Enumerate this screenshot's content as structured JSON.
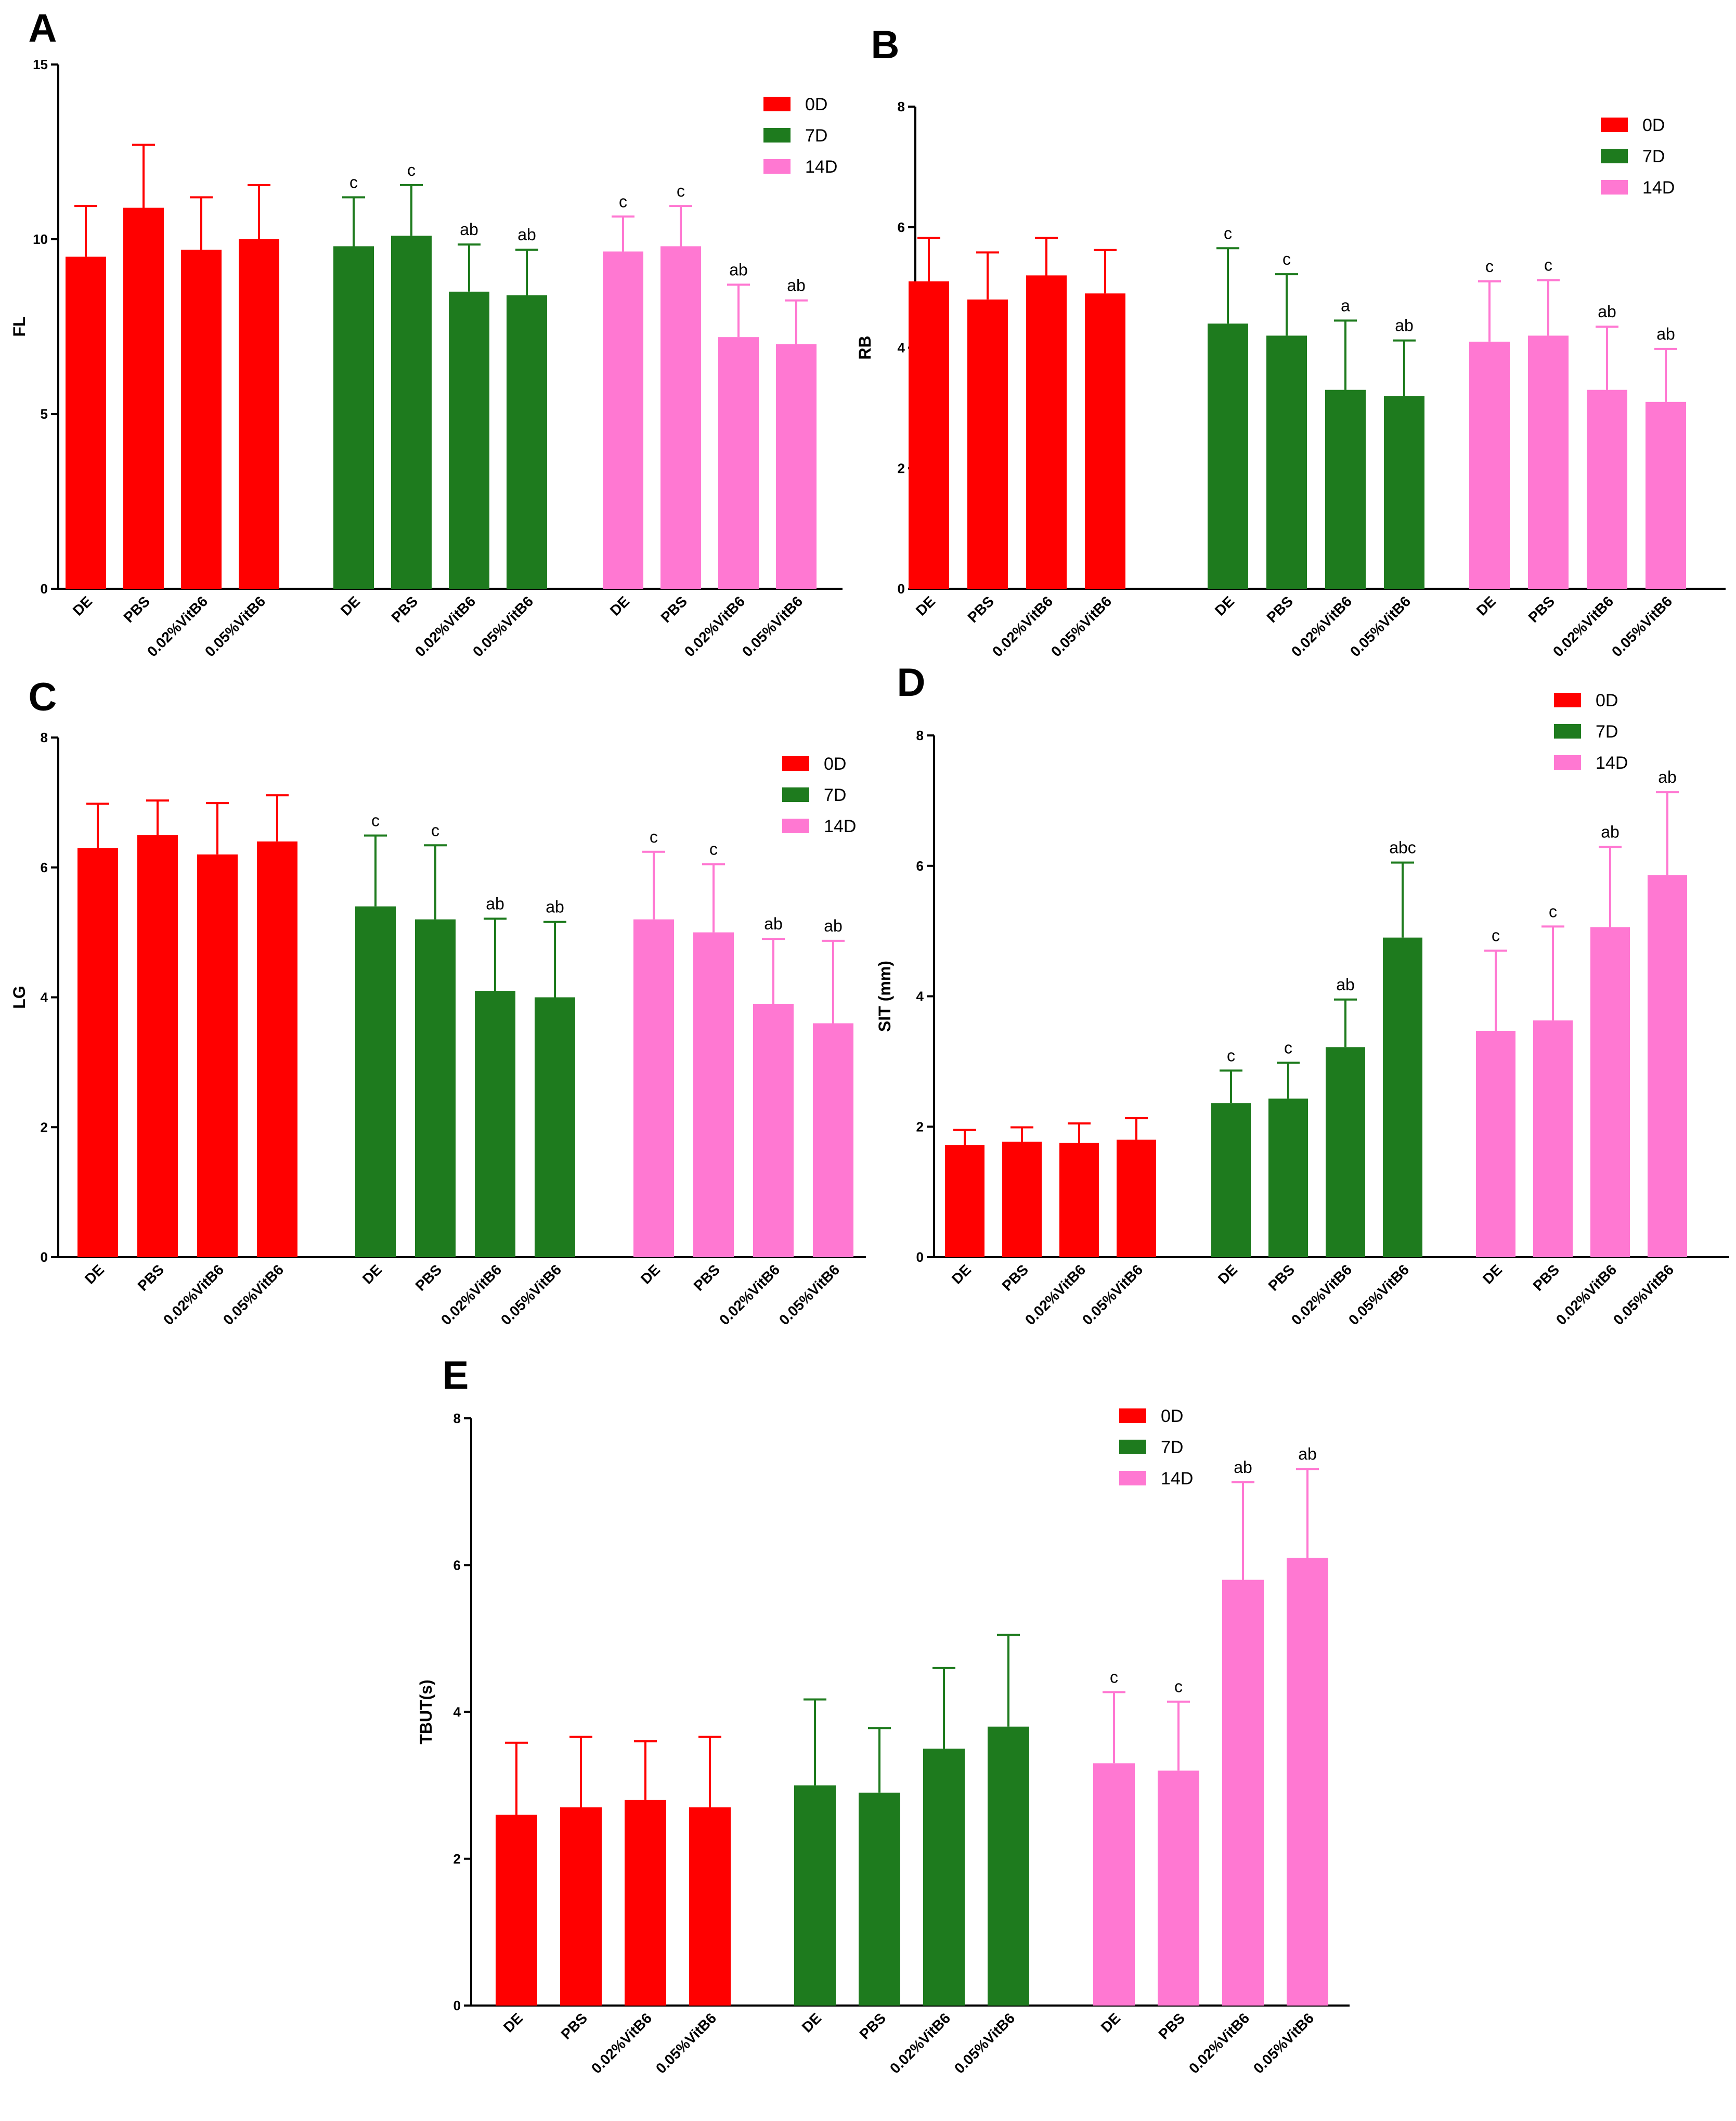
{
  "colors": {
    "0D": "#ff0000",
    "7D": "#1e7b1e",
    "14D": "#ff78d2"
  },
  "chart_data": [
    {
      "panel": "A",
      "type": "bar",
      "ylabel": "FL",
      "ylim": [
        0,
        15
      ],
      "yticks": [
        0,
        5,
        10,
        15
      ],
      "legend": [
        "0D",
        "7D",
        "14D"
      ],
      "groups": [
        {
          "name": "0D",
          "categories": [
            "DE",
            "PBS",
            "0.02%VitB6",
            "0.05%VitB6"
          ],
          "values": [
            9.5,
            10.9,
            9.7,
            10.0
          ],
          "errors": [
            1.45,
            1.8,
            1.5,
            1.55
          ],
          "labels": [
            "",
            "",
            "",
            ""
          ]
        },
        {
          "name": "7D",
          "categories": [
            "DE",
            "PBS",
            "0.02%VitB6",
            "0.05%VitB6"
          ],
          "values": [
            9.8,
            10.1,
            8.5,
            8.4
          ],
          "errors": [
            1.4,
            1.45,
            1.35,
            1.3
          ],
          "labels": [
            "c",
            "c",
            "ab",
            "ab"
          ]
        },
        {
          "name": "14D",
          "categories": [
            "DE",
            "PBS",
            "0.02%VitB6",
            "0.05%VitB6"
          ],
          "values": [
            9.65,
            9.8,
            7.2,
            7.0
          ],
          "errors": [
            1.0,
            1.15,
            1.5,
            1.25
          ],
          "labels": [
            "c",
            "c",
            "ab",
            "ab"
          ]
        }
      ]
    },
    {
      "panel": "B",
      "type": "bar",
      "ylabel": "RB",
      "ylim": [
        0,
        8
      ],
      "yticks": [
        0,
        2,
        4,
        6,
        8
      ],
      "legend": [
        "0D",
        "7D",
        "14D"
      ],
      "groups": [
        {
          "name": "0D",
          "categories": [
            "DE",
            "PBS",
            "0.02%VitB6",
            "0.05%VitB6"
          ],
          "values": [
            5.1,
            4.8,
            5.2,
            4.9
          ],
          "errors": [
            0.72,
            0.78,
            0.62,
            0.72
          ],
          "labels": [
            "",
            "",
            "",
            ""
          ]
        },
        {
          "name": "7D",
          "categories": [
            "DE",
            "PBS",
            "0.02%VitB6",
            "0.05%VitB6"
          ],
          "values": [
            4.4,
            4.2,
            3.3,
            3.2
          ],
          "errors": [
            1.25,
            1.02,
            1.15,
            0.92
          ],
          "labels": [
            "c",
            "c",
            "a",
            "ab"
          ]
        },
        {
          "name": "14D",
          "categories": [
            "DE",
            "PBS",
            "0.02%VitB6",
            "0.05%VitB6"
          ],
          "values": [
            4.1,
            4.2,
            3.3,
            3.1
          ],
          "errors": [
            1.0,
            0.92,
            1.05,
            0.88
          ],
          "labels": [
            "c",
            "c",
            "ab",
            "ab"
          ]
        }
      ]
    },
    {
      "panel": "C",
      "type": "bar",
      "ylabel": "LG",
      "ylim": [
        0,
        8
      ],
      "yticks": [
        0,
        2,
        4,
        6,
        8
      ],
      "legend": [
        "0D",
        "7D",
        "14D"
      ],
      "groups": [
        {
          "name": "0D",
          "categories": [
            "DE",
            "PBS",
            "0.02%VitB6",
            "0.05%VitB6"
          ],
          "values": [
            6.3,
            6.5,
            6.2,
            6.4
          ],
          "errors": [
            0.68,
            0.53,
            0.79,
            0.71
          ],
          "labels": [
            "",
            "",
            "",
            ""
          ]
        },
        {
          "name": "7D",
          "categories": [
            "DE",
            "PBS",
            "0.02%VitB6",
            "0.05%VitB6"
          ],
          "values": [
            5.4,
            5.2,
            4.1,
            4.0
          ],
          "errors": [
            1.09,
            1.14,
            1.11,
            1.16
          ],
          "labels": [
            "c",
            "c",
            "ab",
            "ab"
          ]
        },
        {
          "name": "14D",
          "categories": [
            "DE",
            "PBS",
            "0.02%VitB6",
            "0.05%VitB6"
          ],
          "values": [
            5.2,
            5.0,
            3.9,
            3.6
          ],
          "errors": [
            1.04,
            1.05,
            1.0,
            1.27
          ],
          "labels": [
            "c",
            "c",
            "ab",
            "ab"
          ]
        }
      ]
    },
    {
      "panel": "D",
      "type": "bar",
      "ylabel": "SIT (mm)",
      "ylim": [
        0,
        8
      ],
      "yticks": [
        0,
        2,
        4,
        6,
        8
      ],
      "legend": [
        "0D",
        "7D",
        "14D"
      ],
      "groups": [
        {
          "name": "0D",
          "categories": [
            "DE",
            "PBS",
            "0.02%VitB6",
            "0.05%VitB6"
          ],
          "values": [
            1.72,
            1.77,
            1.75,
            1.8
          ],
          "errors": [
            0.23,
            0.22,
            0.3,
            0.33
          ],
          "labels": [
            "",
            "",
            "",
            ""
          ]
        },
        {
          "name": "7D",
          "categories": [
            "DE",
            "PBS",
            "0.02%VitB6",
            "0.05%VitB6"
          ],
          "values": [
            2.36,
            2.43,
            3.22,
            4.9
          ],
          "errors": [
            0.5,
            0.55,
            0.73,
            1.15
          ],
          "labels": [
            "c",
            "c",
            "ab",
            "abc"
          ]
        },
        {
          "name": "14D",
          "categories": [
            "DE",
            "PBS",
            "0.02%VitB6",
            "0.05%VitB6"
          ],
          "values": [
            3.47,
            3.63,
            5.06,
            5.86
          ],
          "errors": [
            1.23,
            1.44,
            1.23,
            1.27
          ],
          "labels": [
            "c",
            "c",
            "ab",
            "ab"
          ]
        }
      ]
    },
    {
      "panel": "E",
      "type": "bar",
      "ylabel": "TBUT(s)",
      "ylim": [
        0,
        8
      ],
      "yticks": [
        0,
        2,
        4,
        6,
        8
      ],
      "legend": [
        "0D",
        "7D",
        "14D"
      ],
      "groups": [
        {
          "name": "0D",
          "categories": [
            "DE",
            "PBS",
            "0.02%VitB6",
            "0.05%VitB6"
          ],
          "values": [
            2.6,
            2.7,
            2.8,
            2.7
          ],
          "errors": [
            0.98,
            0.96,
            0.8,
            0.96
          ],
          "labels": [
            "",
            "",
            "",
            ""
          ]
        },
        {
          "name": "7D",
          "categories": [
            "DE",
            "PBS",
            "0.02%VitB6",
            "0.05%VitB6"
          ],
          "values": [
            3.0,
            2.9,
            3.5,
            3.8
          ],
          "errors": [
            1.17,
            0.88,
            1.1,
            1.25
          ],
          "labels": [
            "",
            "",
            "",
            ""
          ]
        },
        {
          "name": "14D",
          "categories": [
            "DE",
            "PBS",
            "0.02%VitB6",
            "0.05%VitB6"
          ],
          "values": [
            3.3,
            3.2,
            5.8,
            6.1
          ],
          "errors": [
            0.97,
            0.94,
            1.33,
            1.21
          ],
          "labels": [
            "c",
            "c",
            "ab",
            "ab"
          ]
        }
      ]
    }
  ]
}
